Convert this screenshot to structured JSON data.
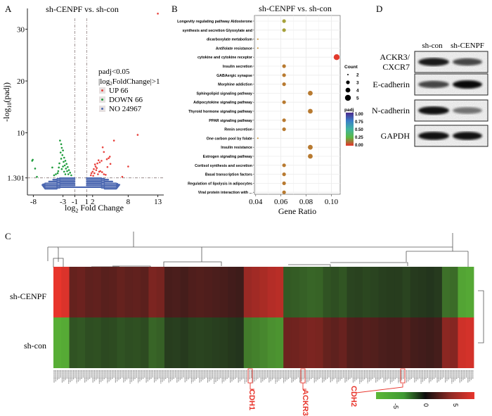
{
  "panels": {
    "A": {
      "label": "A",
      "title": "sh-CENPF vs. sh-con",
      "xlabel_main": "log",
      "xlabel_sub": "2",
      "xlabel_rest": " Fold Change",
      "ylabel_main": "-log",
      "ylabel_sub": "10",
      "ylabel_rest": "(padj)",
      "legend_title1": "padj<0.05",
      "legend_title2_pre": "|log",
      "legend_title2_sub": "2",
      "legend_title2_post": "FoldChange|>1",
      "legend": [
        {
          "label": "UP 66",
          "color": "#e8413c"
        },
        {
          "label": "DOWN 66",
          "color": "#1e9c3c"
        },
        {
          "label": "NO 24967",
          "color": "#4b67b0"
        }
      ]
    },
    "B": {
      "label": "B",
      "title": "sh-CENPF vs. sh-con",
      "count_title": "Count",
      "padj_title": "padj"
    },
    "C": {
      "label": "C",
      "row_labels": [
        "sh-CENPF",
        "sh-con"
      ],
      "highlight_genes": [
        "CDH1",
        "ACKR3",
        "CDH2"
      ],
      "colorbar_ticks": [
        "-5",
        "0",
        "5"
      ]
    },
    "D": {
      "label": "D",
      "lanes": [
        "sh-con",
        "sh-CENPF"
      ],
      "blots": [
        {
          "name": "ACKR3/",
          "name2": "CXCR7",
          "intensity": [
            0.85,
            0.6
          ]
        },
        {
          "name": "E-cadherin",
          "name2": "",
          "intensity": [
            0.6,
            0.95
          ]
        },
        {
          "name": "N-cadherin",
          "name2": "",
          "intensity": [
            0.9,
            0.35
          ]
        },
        {
          "name": "GAPDH",
          "name2": "",
          "intensity": [
            0.9,
            0.9
          ]
        }
      ]
    }
  },
  "chart_data": [
    {
      "type": "scatter",
      "title": "sh-CENPF vs. sh-con",
      "xlabel": "log2 Fold Change",
      "ylabel": "-log10(padj)",
      "xticks": [
        -8,
        -3,
        -1,
        1,
        2,
        8,
        13
      ],
      "yticks": [
        1.301,
        10,
        20,
        30
      ],
      "xlim": [
        -9,
        14
      ],
      "ylim": [
        -2,
        34
      ],
      "thresholds": {
        "x": [
          -1,
          1
        ],
        "y": 1.301
      },
      "series": [
        {
          "name": "UP 66",
          "color": "#e8413c",
          "points": [
            [
              13,
              33
            ],
            [
              9.6,
              9.6
            ],
            [
              5.6,
              8.5
            ],
            [
              8,
              3.5
            ],
            [
              7,
              1.5
            ],
            [
              3.7,
              7.2
            ],
            [
              3.9,
              6.3
            ],
            [
              4.7,
              5.1
            ],
            [
              4.9,
              5.4
            ],
            [
              4.4,
              4.9
            ],
            [
              4.5,
              3.4
            ],
            [
              5,
              4
            ],
            [
              3.5,
              4.6
            ],
            [
              3.2,
              4.3
            ],
            [
              3,
              4.7
            ],
            [
              2.8,
              4.1
            ],
            [
              2.5,
              3.5
            ],
            [
              2.2,
              3.0
            ],
            [
              2.0,
              2.5
            ],
            [
              1.8,
              2.2
            ],
            [
              3.3,
              2.6
            ],
            [
              3.6,
              2.4
            ],
            [
              2.6,
              2.8
            ],
            [
              2.3,
              2.2
            ],
            [
              2.9,
              2.0
            ],
            [
              3.1,
              2.5
            ],
            [
              1.7,
              1.8
            ],
            [
              2.1,
              1.7
            ],
            [
              3.9,
              2.0
            ],
            [
              4.2,
              1.9
            ],
            [
              2.4,
              3.9
            ],
            [
              2.7,
              3.2
            ]
          ]
        },
        {
          "name": "DOWN 66",
          "color": "#1e9c3c",
          "points": [
            [
              -8.2,
              4.6
            ],
            [
              -8.1,
              4.8
            ],
            [
              -7.7,
              3.1
            ],
            [
              -7.4,
              1.5
            ],
            [
              -3.5,
              8.5
            ],
            [
              -3.3,
              7.8
            ],
            [
              -3.2,
              7.1
            ],
            [
              -3.0,
              6.6
            ],
            [
              -3.4,
              6.2
            ],
            [
              -3.1,
              5.7
            ],
            [
              -2.8,
              5.2
            ],
            [
              -3.3,
              5.0
            ],
            [
              -2.6,
              4.6
            ],
            [
              -2.9,
              4.4
            ],
            [
              -3.6,
              4.1
            ],
            [
              -2.4,
              4.0
            ],
            [
              -2.7,
              3.7
            ],
            [
              -3.0,
              3.5
            ],
            [
              -2.2,
              3.4
            ],
            [
              -2.5,
              3.1
            ],
            [
              -3.2,
              3.0
            ],
            [
              -2.0,
              2.8
            ],
            [
              -2.3,
              2.6
            ],
            [
              -2.8,
              2.5
            ],
            [
              -1.8,
              2.3
            ],
            [
              -2.1,
              2.0
            ],
            [
              -2.6,
              2.0
            ],
            [
              -1.6,
              1.8
            ],
            [
              -3.8,
              2.6
            ],
            [
              -4.2,
              2.0
            ],
            [
              -4.8,
              3.3
            ],
            [
              -4.5,
              1.8
            ],
            [
              -3.7,
              3.3
            ],
            [
              -3.9,
              2.2
            ]
          ]
        },
        {
          "name": "NO 24967",
          "color": "#4b67b0",
          "points": "dense envelope below padj threshold"
        }
      ]
    },
    {
      "type": "scatter",
      "title": "sh-CENPF vs. sh-con",
      "xlabel": "Gene Ratio",
      "xticks": [
        0.04,
        0.06,
        0.08,
        0.1
      ],
      "xlim": [
        0.039,
        0.107
      ],
      "size_legend": {
        "title": "Count",
        "values": [
          2,
          3,
          4,
          5
        ]
      },
      "color_legend": {
        "title": "padj",
        "ticks": [
          1.0,
          0.75,
          0.5,
          0.25,
          0.0
        ]
      },
      "categories": [
        "Longevity regulating pathway Aldosterone",
        "synthesis and secretion Glyoxylate and",
        "dicarboxylate metabolism",
        "Antifolate resistance",
        "cytokine and cytokine receptor",
        "Insulin secretion",
        "GABAergic synapse",
        "Morphine addiction",
        "Sphingolipid signaling pathway",
        "Adipocytokine signaling pathway",
        "Thyroid hormone signaling pathway",
        "PPAR signaling pathway",
        "Renin secretion",
        "One carbon pool by folate",
        "Insulin resistance",
        "Estrogen signaling pathway",
        "Cortisol synthesis and secretion",
        "Basal transcription factors",
        "Regulation of lipolysis in adipocytes",
        "Viral protein interaction with ..."
      ],
      "gene_ratio": [
        0.0625,
        0.0625,
        0.0417,
        0.0417,
        0.1042,
        0.0625,
        0.0625,
        0.0625,
        0.0833,
        0.0625,
        0.0833,
        0.0625,
        0.0625,
        0.0417,
        0.0833,
        0.0833,
        0.0625,
        0.0625,
        0.0625,
        0.0625
      ],
      "count": [
        3,
        3,
        2,
        2,
        5,
        3,
        3,
        3,
        4,
        3,
        4,
        3,
        3,
        2,
        4,
        4,
        3,
        3,
        3,
        3
      ],
      "padj": [
        0.3,
        0.3,
        0.1,
        0.1,
        0.0,
        0.1,
        0.1,
        0.1,
        0.1,
        0.1,
        0.1,
        0.1,
        0.1,
        0.1,
        0.1,
        0.1,
        0.1,
        0.1,
        0.1,
        0.1
      ]
    },
    {
      "type": "heatmap",
      "rows": [
        "sh-CENPF",
        "sh-con"
      ],
      "color_scale": {
        "min": -7,
        "max": 7,
        "low": "#5cb838",
        "mid": "#111111",
        "high": "#e8352c"
      },
      "colorbar_ticks": [
        -5,
        0,
        5
      ],
      "column_values_shCENPF": [
        7,
        6.5,
        2.2,
        2.4,
        2.0,
        2.1,
        1.8,
        1.9,
        2.2,
        2.0,
        2.1,
        1.9,
        3.0,
        2.8,
        1.3,
        1.4,
        1.2,
        1.5,
        1.6,
        1.5,
        1.4,
        1.3,
        1.1,
        1.0,
        4.0,
        4.3,
        4.6,
        5,
        5.2,
        -2.5,
        -2.6,
        -2.8,
        -3.0,
        -2.9,
        -2.2,
        -2.0,
        -2.3,
        -1.6,
        -1.5,
        -1.7,
        -1.6,
        -1.4,
        -1.3,
        -1.3,
        -1.6,
        -1.2,
        -1.1,
        -1.0,
        -1.2,
        -3.5,
        -3.3,
        -6.0,
        -6.2
      ],
      "column_values_shcon": [
        -6.5,
        -6.3,
        -2.2,
        -2.4,
        -2.0,
        -2.1,
        -1.8,
        -1.9,
        -2.2,
        -2.0,
        -2.1,
        -1.9,
        -3.0,
        -2.8,
        -1.3,
        -1.4,
        -1.2,
        -1.5,
        -1.6,
        -1.5,
        -1.4,
        -1.3,
        -1.1,
        -1.0,
        -4.0,
        -4.3,
        -4.6,
        -5,
        -5.2,
        2.5,
        2.6,
        2.8,
        3.0,
        2.9,
        2.2,
        2.0,
        2.3,
        1.6,
        1.5,
        1.7,
        1.6,
        1.4,
        1.3,
        1.3,
        1.6,
        1.2,
        1.1,
        1.0,
        1.2,
        3.5,
        3.3,
        6.0,
        6.2
      ],
      "annotations": [
        "CDH1",
        "ACKR3",
        "CDH2"
      ]
    }
  ]
}
